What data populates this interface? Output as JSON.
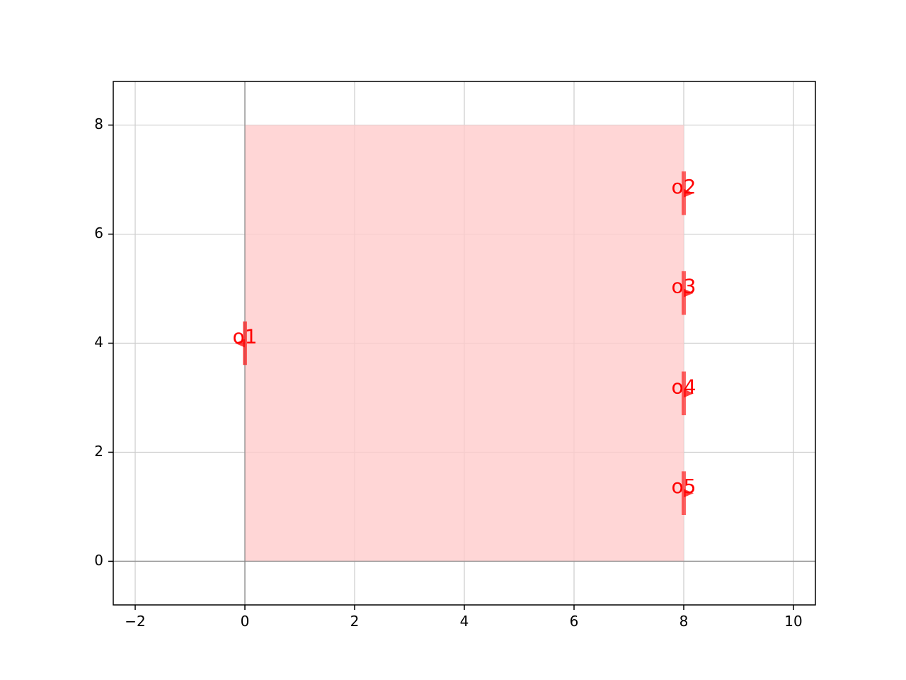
{
  "chart_data": {
    "type": "scatter",
    "xlim": [
      -2.4,
      10.4
    ],
    "ylim": [
      -0.8,
      8.8
    ],
    "x_ticks": [
      -2,
      0,
      2,
      4,
      6,
      8,
      10
    ],
    "y_ticks": [
      0,
      2,
      4,
      6,
      8
    ],
    "x_tick_labels": [
      "−2",
      "0",
      "2",
      "4",
      "6",
      "8",
      "10"
    ],
    "y_tick_labels": [
      "0",
      "2",
      "4",
      "6",
      "8"
    ],
    "grid": true,
    "component_rect": {
      "x": [
        0,
        8
      ],
      "y": [
        0,
        8
      ]
    },
    "ports": [
      {
        "name": "o1",
        "x": 0,
        "y": 4,
        "orientation": 180,
        "width": 0.4
      },
      {
        "name": "o2",
        "x": 8,
        "y": 6.75,
        "orientation": 0,
        "width": 0.4
      },
      {
        "name": "o3",
        "x": 8,
        "y": 4.92,
        "orientation": 0,
        "width": 0.4
      },
      {
        "name": "o4",
        "x": 8,
        "y": 3.08,
        "orientation": 0,
        "width": 0.4
      },
      {
        "name": "o5",
        "x": 8,
        "y": 1.25,
        "orientation": 0,
        "width": 0.4
      }
    ],
    "colors": {
      "fill": "#ffcccc",
      "port": "#ff0000",
      "axis_line": "#808080",
      "grid": "#cccccc"
    }
  }
}
